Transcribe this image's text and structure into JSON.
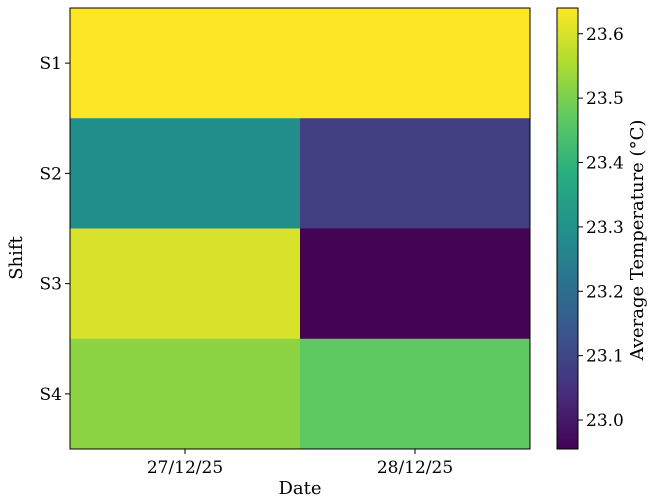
{
  "chart_data": {
    "type": "heatmap",
    "x_categories": [
      "27/12/25",
      "28/12/25"
    ],
    "y_categories": [
      "S1",
      "S2",
      "S3",
      "S4"
    ],
    "values": [
      [
        23.64,
        23.64
      ],
      [
        23.29,
        23.08
      ],
      [
        23.6,
        22.96
      ],
      [
        23.52,
        23.47
      ]
    ],
    "xlabel": "Date",
    "ylabel": "Shift",
    "colorbar": {
      "label": "Average Temperature (°C)",
      "range": [
        22.955,
        23.64
      ],
      "ticks": [
        "23.0",
        "23.1",
        "23.2",
        "23.3",
        "23.4",
        "23.5",
        "23.6"
      ],
      "colormap": "viridis"
    }
  }
}
